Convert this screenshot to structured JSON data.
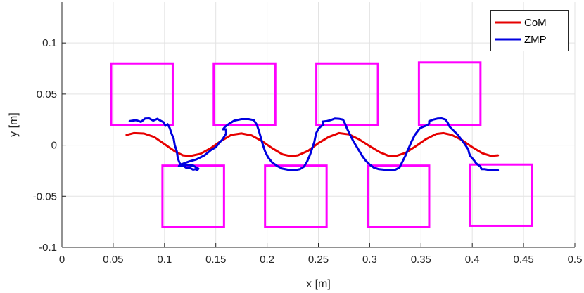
{
  "chart_data": {
    "type": "line",
    "xlabel": "x [m]",
    "ylabel": "y [m]",
    "xlim": [
      0,
      0.5
    ],
    "ylim": [
      -0.1,
      0.14
    ],
    "xticks": [
      0,
      0.05,
      0.1,
      0.15,
      0.2,
      0.25,
      0.3,
      0.35,
      0.4,
      0.45,
      0.5
    ],
    "xtick_labels": [
      "0",
      "0.05",
      "0.1",
      "0.15",
      "0.2",
      "0.25",
      "0.3",
      "0.35",
      "0.4",
      "0.45",
      "0.5"
    ],
    "yticks": [
      -0.1,
      -0.05,
      0,
      0.05,
      0.1
    ],
    "ytick_labels": [
      "-0.1",
      "-0.05",
      "0",
      "0.05",
      "0.1"
    ],
    "grid": true,
    "legend_position": "top-right",
    "series": [
      {
        "name": "CoM",
        "color": "#e60000",
        "points": [
          [
            0.063,
            0.01
          ],
          [
            0.07,
            0.0118
          ],
          [
            0.08,
            0.0114
          ],
          [
            0.09,
            0.008
          ],
          [
            0.1,
            0.001
          ],
          [
            0.11,
            -0.006
          ],
          [
            0.118,
            -0.01
          ],
          [
            0.125,
            -0.0107
          ],
          [
            0.135,
            -0.0085
          ],
          [
            0.145,
            -0.003
          ],
          [
            0.155,
            0.004
          ],
          [
            0.165,
            0.01
          ],
          [
            0.175,
            0.0115
          ],
          [
            0.185,
            0.0095
          ],
          [
            0.195,
            0.004
          ],
          [
            0.205,
            -0.003
          ],
          [
            0.215,
            -0.009
          ],
          [
            0.223,
            -0.0108
          ],
          [
            0.23,
            -0.01
          ],
          [
            0.24,
            -0.0055
          ],
          [
            0.25,
            0.002
          ],
          [
            0.26,
            0.008
          ],
          [
            0.27,
            0.0118
          ],
          [
            0.28,
            0.0105
          ],
          [
            0.29,
            0.0055
          ],
          [
            0.3,
            -0.001
          ],
          [
            0.31,
            -0.007
          ],
          [
            0.318,
            -0.0103
          ],
          [
            0.325,
            -0.0108
          ],
          [
            0.335,
            -0.0075
          ],
          [
            0.345,
            -0.001
          ],
          [
            0.355,
            0.006
          ],
          [
            0.365,
            0.011
          ],
          [
            0.372,
            0.0118
          ],
          [
            0.38,
            0.01
          ],
          [
            0.39,
            0.005
          ],
          [
            0.4,
            -0.002
          ],
          [
            0.41,
            -0.008
          ],
          [
            0.418,
            -0.0105
          ],
          [
            0.425,
            -0.01
          ]
        ]
      },
      {
        "name": "ZMP",
        "color": "#0000e0",
        "points": [
          [
            0.066,
            0.0235
          ],
          [
            0.072,
            0.0245
          ],
          [
            0.077,
            0.0228
          ],
          [
            0.081,
            0.026
          ],
          [
            0.085,
            0.0262
          ],
          [
            0.089,
            0.024
          ],
          [
            0.093,
            0.0258
          ],
          [
            0.096,
            0.024
          ],
          [
            0.099,
            0.0225
          ],
          [
            0.101,
            0.019
          ],
          [
            0.103,
            0.0205
          ],
          [
            0.105,
            0.017
          ],
          [
            0.107,
            0.011
          ],
          [
            0.109,
            0.006
          ],
          [
            0.11,
            0.0
          ],
          [
            0.112,
            -0.006
          ],
          [
            0.113,
            -0.013
          ],
          [
            0.115,
            -0.018
          ],
          [
            0.118,
            -0.02
          ],
          [
            0.121,
            -0.022
          ],
          [
            0.125,
            -0.0225
          ],
          [
            0.128,
            -0.024
          ],
          [
            0.13,
            -0.0235
          ],
          [
            0.132,
            -0.0245
          ],
          [
            0.133,
            -0.023
          ],
          [
            0.128,
            -0.02
          ],
          [
            0.12,
            -0.0195
          ],
          [
            0.114,
            -0.0205
          ],
          [
            0.117,
            -0.0185
          ],
          [
            0.124,
            -0.016
          ],
          [
            0.131,
            -0.014
          ],
          [
            0.139,
            -0.01
          ],
          [
            0.145,
            -0.005
          ],
          [
            0.15,
            -0.002
          ],
          [
            0.153,
            0.002
          ],
          [
            0.156,
            0.005
          ],
          [
            0.158,
            0.008
          ],
          [
            0.16,
            0.011
          ],
          [
            0.16,
            0.014
          ],
          [
            0.16,
            0.0155
          ],
          [
            0.157,
            0.0155
          ],
          [
            0.159,
            0.018
          ],
          [
            0.163,
            0.021
          ],
          [
            0.168,
            0.024
          ],
          [
            0.175,
            0.0255
          ],
          [
            0.182,
            0.0255
          ],
          [
            0.187,
            0.0245
          ],
          [
            0.19,
            0.02
          ],
          [
            0.192,
            0.014
          ],
          [
            0.194,
            0.007
          ],
          [
            0.196,
            0.0
          ],
          [
            0.198,
            -0.006
          ],
          [
            0.201,
            -0.012
          ],
          [
            0.205,
            -0.017
          ],
          [
            0.21,
            -0.0205
          ],
          [
            0.215,
            -0.023
          ],
          [
            0.221,
            -0.0242
          ],
          [
            0.227,
            -0.0245
          ],
          [
            0.232,
            -0.0235
          ],
          [
            0.236,
            -0.021
          ],
          [
            0.239,
            -0.016
          ],
          [
            0.242,
            -0.009
          ],
          [
            0.244,
            -0.003
          ],
          [
            0.246,
            0.003
          ],
          [
            0.247,
            0.008
          ],
          [
            0.248,
            0.012
          ],
          [
            0.25,
            0.016
          ],
          [
            0.252,
            0.018
          ],
          [
            0.255,
            0.02
          ],
          [
            0.254,
            0.023
          ],
          [
            0.258,
            0.0235
          ],
          [
            0.262,
            0.0245
          ],
          [
            0.266,
            0.026
          ],
          [
            0.27,
            0.0258
          ],
          [
            0.274,
            0.025
          ],
          [
            0.276,
            0.021
          ],
          [
            0.278,
            0.016
          ],
          [
            0.281,
            0.01
          ],
          [
            0.284,
            0.004
          ],
          [
            0.287,
            -0.001
          ],
          [
            0.29,
            -0.006
          ],
          [
            0.293,
            -0.011
          ],
          [
            0.296,
            -0.015
          ],
          [
            0.3,
            -0.019
          ],
          [
            0.304,
            -0.022
          ],
          [
            0.309,
            -0.0235
          ],
          [
            0.314,
            -0.024
          ],
          [
            0.32,
            -0.024
          ],
          [
            0.325,
            -0.024
          ],
          [
            0.329,
            -0.022
          ],
          [
            0.332,
            -0.016
          ],
          [
            0.335,
            -0.01
          ],
          [
            0.338,
            -0.003
          ],
          [
            0.341,
            0.004
          ],
          [
            0.344,
            0.01
          ],
          [
            0.347,
            0.014
          ],
          [
            0.349,
            0.0165
          ],
          [
            0.352,
            0.018
          ],
          [
            0.356,
            0.0195
          ],
          [
            0.358,
            0.021
          ],
          [
            0.358,
            0.0235
          ],
          [
            0.362,
            0.025
          ],
          [
            0.366,
            0.026
          ],
          [
            0.37,
            0.0262
          ],
          [
            0.374,
            0.025
          ],
          [
            0.376,
            0.022
          ],
          [
            0.378,
            0.018
          ],
          [
            0.38,
            0.016
          ],
          [
            0.383,
            0.013
          ],
          [
            0.386,
            0.01
          ],
          [
            0.389,
            0.006
          ],
          [
            0.392,
            0.002
          ],
          [
            0.394,
            -0.001
          ],
          [
            0.396,
            -0.004
          ],
          [
            0.397,
            -0.008
          ],
          [
            0.398,
            -0.0105
          ],
          [
            0.401,
            -0.014
          ],
          [
            0.404,
            -0.018
          ],
          [
            0.408,
            -0.021
          ],
          [
            0.409,
            -0.0235
          ],
          [
            0.412,
            -0.0235
          ],
          [
            0.416,
            -0.0242
          ],
          [
            0.421,
            -0.0245
          ],
          [
            0.425,
            -0.0245
          ]
        ]
      }
    ],
    "footprints": {
      "color": "#ff00ff",
      "rects": [
        {
          "x0": 0.048,
          "x1": 0.108,
          "y0": 0.02,
          "y1": 0.08
        },
        {
          "x0": 0.148,
          "x1": 0.208,
          "y0": 0.02,
          "y1": 0.08
        },
        {
          "x0": 0.248,
          "x1": 0.308,
          "y0": 0.02,
          "y1": 0.08
        },
        {
          "x0": 0.348,
          "x1": 0.408,
          "y0": 0.02,
          "y1": 0.081
        },
        {
          "x0": 0.098,
          "x1": 0.158,
          "y0": -0.08,
          "y1": -0.02
        },
        {
          "x0": 0.198,
          "x1": 0.258,
          "y0": -0.08,
          "y1": -0.02
        },
        {
          "x0": 0.298,
          "x1": 0.358,
          "y0": -0.08,
          "y1": -0.02
        },
        {
          "x0": 0.398,
          "x1": 0.458,
          "y0": -0.079,
          "y1": -0.019
        }
      ]
    }
  }
}
